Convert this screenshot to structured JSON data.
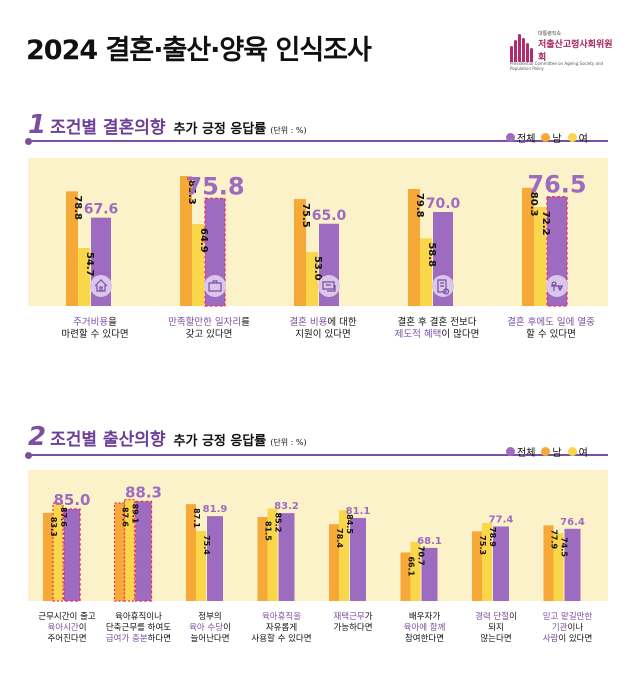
{
  "header": {
    "title": "2024 결혼·출산·양육 인식조사",
    "logo_small": "대통령직속",
    "logo_main": "저출산고령사회위원회",
    "logo_en": "Presidential Committee on Ageing Society and Population Policy"
  },
  "legend": {
    "all": "전체",
    "male": "남",
    "female": "여"
  },
  "colors": {
    "all": "#9d6cc0",
    "male": "#f6a937",
    "female": "#f9d64a",
    "highlight": "#e93068",
    "accent": "#7b4fa0",
    "panel": "#fcf2c9"
  },
  "chart_data": [
    {
      "type": "bar",
      "section_number": "1",
      "title": "조건별 결혼의향",
      "subtitle": "추가 긍정 응답률",
      "unit": "(단위 : %)",
      "series": [
        {
          "name": "남",
          "values": [
            78.8,
            85.3,
            75.5,
            79.8,
            80.3
          ]
        },
        {
          "name": "여",
          "values": [
            54.7,
            64.9,
            53.0,
            58.8,
            72.2
          ]
        },
        {
          "name": "전체",
          "values": [
            67.6,
            75.8,
            65.0,
            70.0,
            76.5
          ]
        }
      ],
      "value_labels": {
        "male": [
          "78.8",
          "85.3",
          "75.5",
          "79.8",
          "80.3"
        ],
        "female": [
          "54.7",
          "64.9",
          "53.0",
          "58.8",
          "72.2"
        ],
        "all": [
          "67.6",
          "75.8",
          "65.0",
          "70.0",
          "76.5"
        ]
      },
      "highlight_all": [
        false,
        true,
        false,
        false,
        true
      ],
      "icons": [
        "house-icon",
        "briefcase-icon",
        "money-card-icon",
        "document-coin-icon",
        "parent-child-icon"
      ],
      "categories": [
        {
          "pre": "",
          "hl": "주거비용",
          "post": "을",
          "line2": "마련할 수 있다면"
        },
        {
          "pre": "",
          "hl": "만족할만한 일자리",
          "post": "를",
          "line2": "갖고 있다면"
        },
        {
          "pre": "",
          "hl": "결혼 비용",
          "post": "에 대한",
          "line2": "지원이 있다면"
        },
        {
          "pre": "",
          "hl": "",
          "post": "결혼 후 결혼 전보다",
          "line2_hl": "제도적 혜택",
          "line2": "이 많다면"
        },
        {
          "pre": "",
          "hl": "결혼 후에도 일에 열중",
          "post": "",
          "line2": "할 수 있다면"
        }
      ]
    },
    {
      "type": "bar",
      "section_number": "2",
      "title": "조건별 출산의향",
      "subtitle": "추가 긍정 응답률",
      "unit": "(단위 : %)",
      "series": [
        {
          "name": "남",
          "values": [
            83.3,
            87.6,
            87.1,
            81.5,
            78.4,
            66.1,
            75.3,
            77.9
          ]
        },
        {
          "name": "여",
          "values": [
            87.6,
            89.1,
            75.4,
            85.2,
            84.5,
            70.7,
            78.9,
            74.5
          ]
        },
        {
          "name": "전체",
          "values": [
            85.0,
            88.3,
            81.9,
            83.2,
            81.1,
            68.1,
            77.4,
            76.4
          ]
        }
      ],
      "value_labels": {
        "male": [
          "83.3",
          "87.6",
          "87.1",
          "81.5",
          "78.4",
          "66.1",
          "75.3",
          "77.9"
        ],
        "female": [
          "87.6",
          "89.1",
          "75.4",
          "85.2",
          "84.5",
          "70.7",
          "78.9",
          "74.5"
        ],
        "all": [
          "85.0",
          "88.3",
          "81.9",
          "83.2",
          "81.1",
          "68.1",
          "77.4",
          "76.4"
        ]
      },
      "highlight_all": [
        true,
        true,
        false,
        false,
        false,
        false,
        false,
        false
      ],
      "highlight_female": [
        true,
        true,
        false,
        false,
        false,
        false,
        false,
        false
      ],
      "highlight_male": [
        false,
        true,
        false,
        false,
        false,
        false,
        false,
        false
      ],
      "categories": [
        {
          "l1": "근무시간이 줄고",
          "l2": "육아시간",
          "l2post": "이",
          "l3": "주어진다면",
          "hl": [
            2
          ]
        },
        {
          "l1": "육아휴직이나",
          "l2": "단축근무를 하여도",
          "l3": "급여가 충분",
          "l3post": "하다면",
          "hl": [
            3
          ]
        },
        {
          "l1": "정부의",
          "l2": "육아 수당",
          "l2post": "이",
          "l3": "늘어난다면",
          "hl": [
            2
          ]
        },
        {
          "l1": "육아휴직을",
          "l2": "자유롭게",
          "l3": "사용할 수 있다면",
          "hl": [
            1
          ]
        },
        {
          "l1": "재택근무",
          "l1post": "가",
          "l2": "가능하다면",
          "l3": "",
          "hl": [
            1
          ]
        },
        {
          "l1": "배우자가",
          "l2": "육아에 함께",
          "l3": "참여한다면",
          "hl": [
            2
          ]
        },
        {
          "l1": "경력 단절",
          "l1post": "이",
          "l2": "되지",
          "l3": "않는다면",
          "hl": [
            1
          ]
        },
        {
          "l1": "믿고 맡길만한",
          "l2": "기관",
          "l2post": "이나",
          "l3": "사람",
          "l3post": "이 있다면",
          "hl": [
            1,
            2,
            3
          ]
        }
      ]
    }
  ]
}
